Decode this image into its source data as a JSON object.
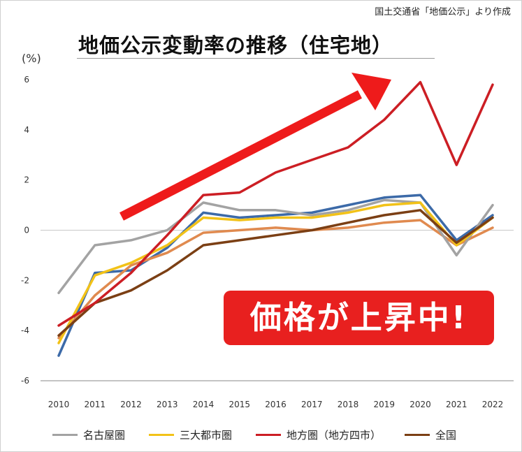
{
  "source_note": "国土交通省「地価公示」より作成",
  "callout": "価格が上昇中!",
  "chart_data": {
    "type": "line",
    "title": "地価公示変動率の推移（住宅地）",
    "ylabel": "(%)",
    "ylim": [
      -6,
      6
    ],
    "yticks": [
      6,
      4,
      2,
      0,
      -2,
      -4,
      -6
    ],
    "categories": [
      "2010",
      "2011",
      "2012",
      "2013",
      "2014",
      "2015",
      "2016",
      "2017",
      "2018",
      "2019",
      "2020",
      "2021",
      "2022"
    ],
    "grid": false,
    "legend_position": "bottom",
    "series": [
      {
        "name": "名古屋圏",
        "color": "#a3a3a3",
        "values": [
          -2.5,
          -0.6,
          -0.4,
          0.0,
          1.1,
          0.8,
          0.8,
          0.6,
          0.8,
          1.2,
          1.1,
          -1.0,
          1.0
        ]
      },
      {
        "name": "三大都市圏",
        "color": "#f2c218",
        "values": [
          -4.5,
          -1.8,
          -1.3,
          -0.6,
          0.5,
          0.4,
          0.5,
          0.5,
          0.7,
          1.0,
          1.1,
          -0.6,
          0.5
        ]
      },
      {
        "name": "地方圏（地方四市）",
        "color": "#cc1e24",
        "values": [
          -3.8,
          -2.9,
          -1.7,
          -0.2,
          1.4,
          1.5,
          2.3,
          2.8,
          3.3,
          4.4,
          5.9,
          2.6,
          5.8
        ]
      },
      {
        "name": "全国",
        "color": "#7b3f14",
        "values": [
          -4.2,
          -2.9,
          -2.4,
          -1.6,
          -0.6,
          -0.4,
          -0.2,
          0.0,
          0.3,
          0.6,
          0.8,
          -0.5,
          0.5
        ]
      },
      {
        "name": "",
        "color": "#3c6aa8",
        "values": [
          -5.0,
          -1.7,
          -1.6,
          -0.7,
          0.7,
          0.5,
          0.6,
          0.7,
          1.0,
          1.3,
          1.4,
          -0.4,
          0.6
        ]
      },
      {
        "name": "",
        "color": "#e08a4f",
        "values": [
          -4.3,
          -2.6,
          -1.4,
          -0.9,
          -0.1,
          0.0,
          0.1,
          0.0,
          0.1,
          0.3,
          0.4,
          -0.6,
          0.1
        ]
      }
    ]
  }
}
